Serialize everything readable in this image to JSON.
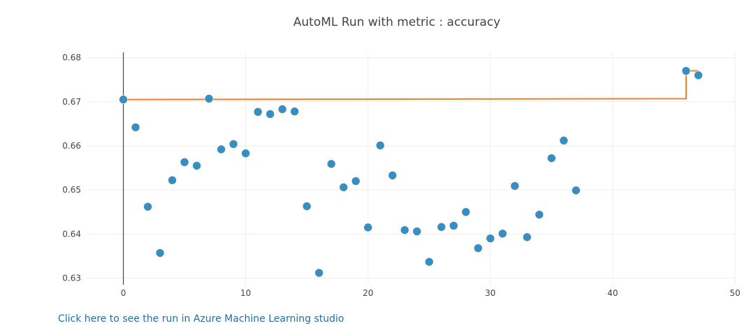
{
  "link": {
    "label": "Click here to see the run in Azure Machine Learning studio"
  },
  "colors": {
    "points": "#3a8ebf",
    "best_line": "#f07f28",
    "grid": "#eeeeee",
    "zero_line": "#444444",
    "link": "#1f6fa8"
  },
  "chart_data": {
    "type": "scatter",
    "title": "AutoML Run with metric : accuracy",
    "xlabel": "",
    "ylabel": "",
    "xlim": [
      -3,
      50
    ],
    "ylim": [
      0.6285,
      0.6812
    ],
    "xticks": [
      0,
      10,
      20,
      30,
      40,
      50
    ],
    "yticks": [
      0.63,
      0.64,
      0.65,
      0.66,
      0.67,
      0.68
    ],
    "ytick_labels": [
      "0.63",
      "0.64",
      "0.65",
      "0.66",
      "0.67",
      "0.68"
    ],
    "grid": true,
    "legend": "none",
    "series": [
      {
        "mode": "markers",
        "x": [
          0,
          1,
          2,
          3,
          4,
          5,
          6,
          7,
          8,
          9,
          10,
          11,
          12,
          13,
          14,
          15,
          16,
          17,
          18,
          19,
          20,
          21,
          22,
          23,
          24,
          25,
          26,
          27,
          28,
          29,
          30,
          31,
          32,
          33,
          34,
          35,
          36,
          37,
          46,
          47
        ],
        "y": [
          0.6705,
          0.6642,
          0.6462,
          0.6357,
          0.6522,
          0.6563,
          0.6555,
          0.6707,
          0.6592,
          0.6604,
          0.6583,
          0.6677,
          0.6672,
          0.6683,
          0.6678,
          0.6463,
          0.6312,
          0.6559,
          0.6506,
          0.652,
          0.6415,
          0.6601,
          0.6533,
          0.6409,
          0.6406,
          0.6337,
          0.6416,
          0.6419,
          0.645,
          0.6368,
          0.639,
          0.6401,
          0.6509,
          0.6393,
          0.6444,
          0.6572,
          0.6612,
          0.6499,
          0.677,
          0.676
        ]
      },
      {
        "mode": "step-line",
        "x": [
          0,
          46,
          46,
          47
        ],
        "y": [
          0.6705,
          0.6707,
          0.677,
          0.677
        ]
      }
    ]
  }
}
